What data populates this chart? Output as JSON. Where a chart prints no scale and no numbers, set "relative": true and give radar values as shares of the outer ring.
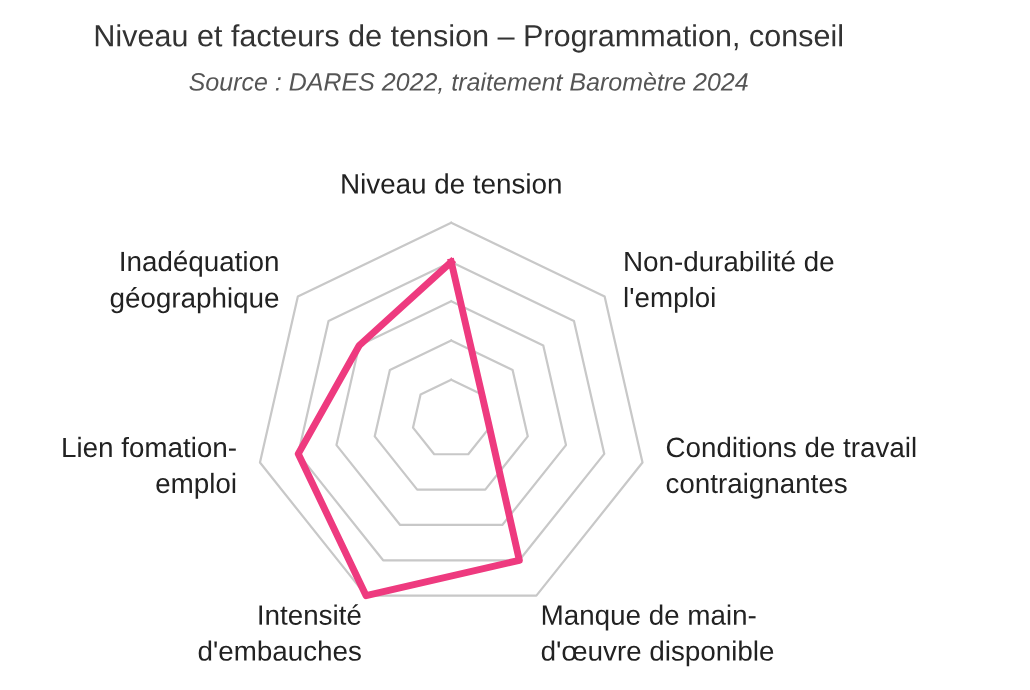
{
  "chart_data": {
    "type": "radar",
    "title": "Niveau et facteurs de tension – Programmation, conseil",
    "annotations": [
      "Source : DARES 2022, traitement Baromètre 2024"
    ],
    "categories": [
      "Niveau de tension",
      "Non-durabilité de\nl'emploi",
      "Conditions de travail\ncontraignantes",
      "Manque de main-\nd'œuvre disponible",
      "Intensité\nd'embauches",
      "Lien fomation-\nemploi",
      "Inadéquation\ngéographique"
    ],
    "relative": true,
    "grid": true,
    "marker": "none",
    "line_style": "solid",
    "series": [
      {
        "color": "#ee3a7f",
        "values": [
          0.8,
          0.2,
          0.2,
          0.8,
          1.0,
          0.8,
          0.6
        ]
      }
    ]
  }
}
